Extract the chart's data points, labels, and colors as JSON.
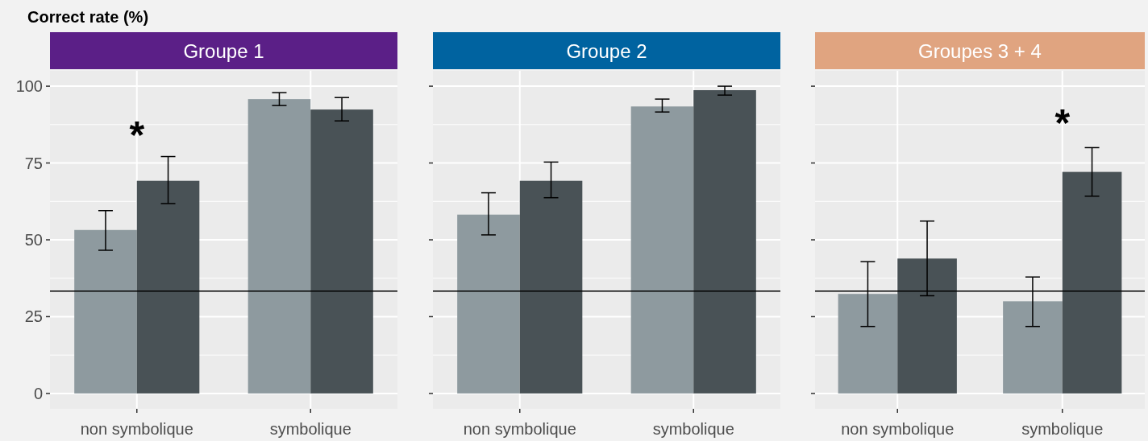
{
  "chart_data": [
    {
      "type": "bar",
      "title": "Groupe 1",
      "ylabel": "Correct rate (%)",
      "categories": [
        "non symbolique",
        "symbolique"
      ],
      "ylim": [
        -5,
        105
      ],
      "yticks": [
        0,
        25,
        50,
        75,
        100
      ],
      "grid": true,
      "series": [
        {
          "color": "#8e9a9f",
          "values": [
            53.2,
            95.8
          ],
          "errors": [
            [
              46.6,
              59.5
            ],
            [
              93.7,
              97.9
            ]
          ]
        },
        {
          "color": "#495256",
          "values": [
            69.2,
            92.4
          ],
          "errors": [
            [
              61.8,
              77.1
            ],
            [
              88.7,
              96.3
            ]
          ]
        }
      ],
      "ref_lines": [
        {
          "axis": "y",
          "value": 33.3,
          "color": "#000000"
        }
      ],
      "annotations": [
        "*"
      ]
    },
    {
      "type": "bar",
      "title": "Groupe 2",
      "categories": [
        "non symbolique",
        "symbolique"
      ],
      "ylim": [
        -5,
        105
      ],
      "yticks": [
        0,
        25,
        50,
        75,
        100
      ],
      "grid": true,
      "tick_labels": "x",
      "series": [
        {
          "color": "#8e9a9f",
          "values": [
            58.2,
            93.4
          ],
          "errors": [
            [
              51.6,
              65.3
            ],
            [
              91.6,
              95.8
            ]
          ]
        },
        {
          "color": "#495256",
          "values": [
            69.2,
            98.7
          ],
          "errors": [
            [
              63.7,
              75.3
            ],
            [
              97.1,
              100
            ]
          ]
        }
      ],
      "ref_lines": [
        {
          "axis": "y",
          "value": 33.3,
          "color": "#000000"
        }
      ]
    },
    {
      "type": "bar",
      "title": "Groupes 3 + 4",
      "categories": [
        "non symbolique",
        "symbolique"
      ],
      "ylim": [
        -5,
        105
      ],
      "yticks": [
        0,
        25,
        50,
        75,
        100
      ],
      "grid": true,
      "tick_labels": "x",
      "series": [
        {
          "color": "#8e9a9f",
          "values": [
            32.4,
            30.0
          ],
          "errors": [
            [
              21.8,
              42.9
            ],
            [
              21.8,
              37.9
            ]
          ]
        },
        {
          "color": "#495256",
          "values": [
            43.9,
            72.1
          ],
          "errors": [
            [
              31.8,
              56.1
            ],
            [
              64.2,
              80.0
            ]
          ]
        }
      ],
      "ref_lines": [
        {
          "axis": "y",
          "value": 33.3,
          "color": "#000000"
        }
      ],
      "annotations": [
        "*"
      ]
    }
  ]
}
